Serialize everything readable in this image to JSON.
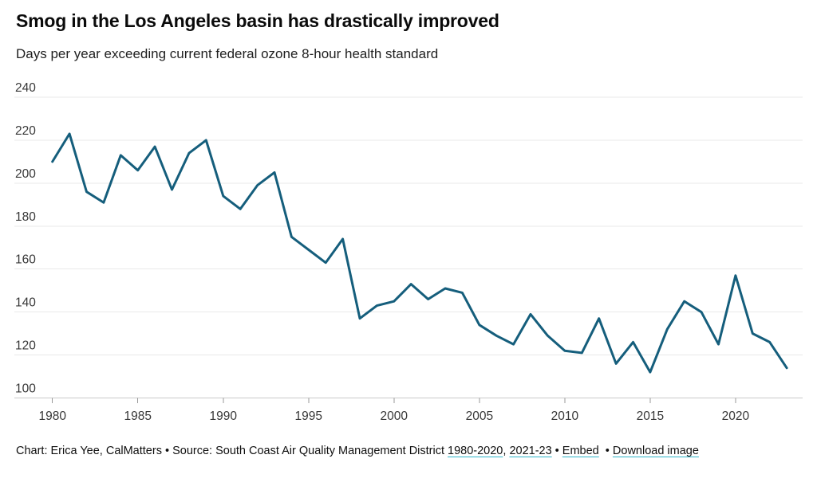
{
  "header": {
    "title": "Smog in the Los Angeles basin has drastically improved",
    "subtitle": "Days per year exceeding current federal ozone 8-hour health standard"
  },
  "chart_data": {
    "type": "line",
    "title": "Smog in the Los Angeles basin has drastically improved",
    "subtitle": "Days per year exceeding current federal ozone 8-hour health standard",
    "series_name": "Days per year exceeding federal ozone 8-hour health standard",
    "xlabel": "",
    "ylabel": "",
    "x": [
      1980,
      1981,
      1982,
      1983,
      1984,
      1985,
      1986,
      1987,
      1988,
      1989,
      1990,
      1991,
      1992,
      1993,
      1994,
      1995,
      1996,
      1997,
      1998,
      1999,
      2000,
      2001,
      2002,
      2003,
      2004,
      2005,
      2006,
      2007,
      2008,
      2009,
      2010,
      2011,
      2012,
      2013,
      2014,
      2015,
      2016,
      2017,
      2018,
      2019,
      2020,
      2021,
      2022,
      2023
    ],
    "values": [
      210,
      223,
      196,
      191,
      213,
      206,
      217,
      197,
      214,
      220,
      194,
      188,
      199,
      205,
      175,
      169,
      163,
      174,
      137,
      143,
      145,
      153,
      146,
      151,
      149,
      134,
      129,
      125,
      139,
      129,
      122,
      121,
      137,
      116,
      126,
      112,
      132,
      145,
      140,
      125,
      157,
      130,
      126,
      114
    ],
    "xlim": [
      1980,
      2023
    ],
    "ylim": [
      100,
      240
    ],
    "yticks": [
      240,
      220,
      200,
      180,
      160,
      140,
      120,
      100
    ],
    "xticks": [
      1980,
      1985,
      1990,
      1995,
      2000,
      2005,
      2010,
      2015,
      2020
    ],
    "grid": "horizontal",
    "legend": "none",
    "line_color": "#155e7c"
  },
  "footer": {
    "credit": "Chart: Erica Yee, CalMatters",
    "sep": " • ",
    "source_label": "Source: South Coast Air Quality Management District ",
    "source_link_1": "1980-2020",
    "comma": ", ",
    "source_link_2": "2021-23",
    "sep_wide": "  • ",
    "embed_label": "Embed",
    "download_label": "Download image"
  },
  "colors": {
    "line": "#155e7c",
    "link_underline": "#2cb4c8",
    "grid": "#e9e9e9",
    "axis_baseline": "#c9c9c9",
    "tick": "#999999"
  }
}
